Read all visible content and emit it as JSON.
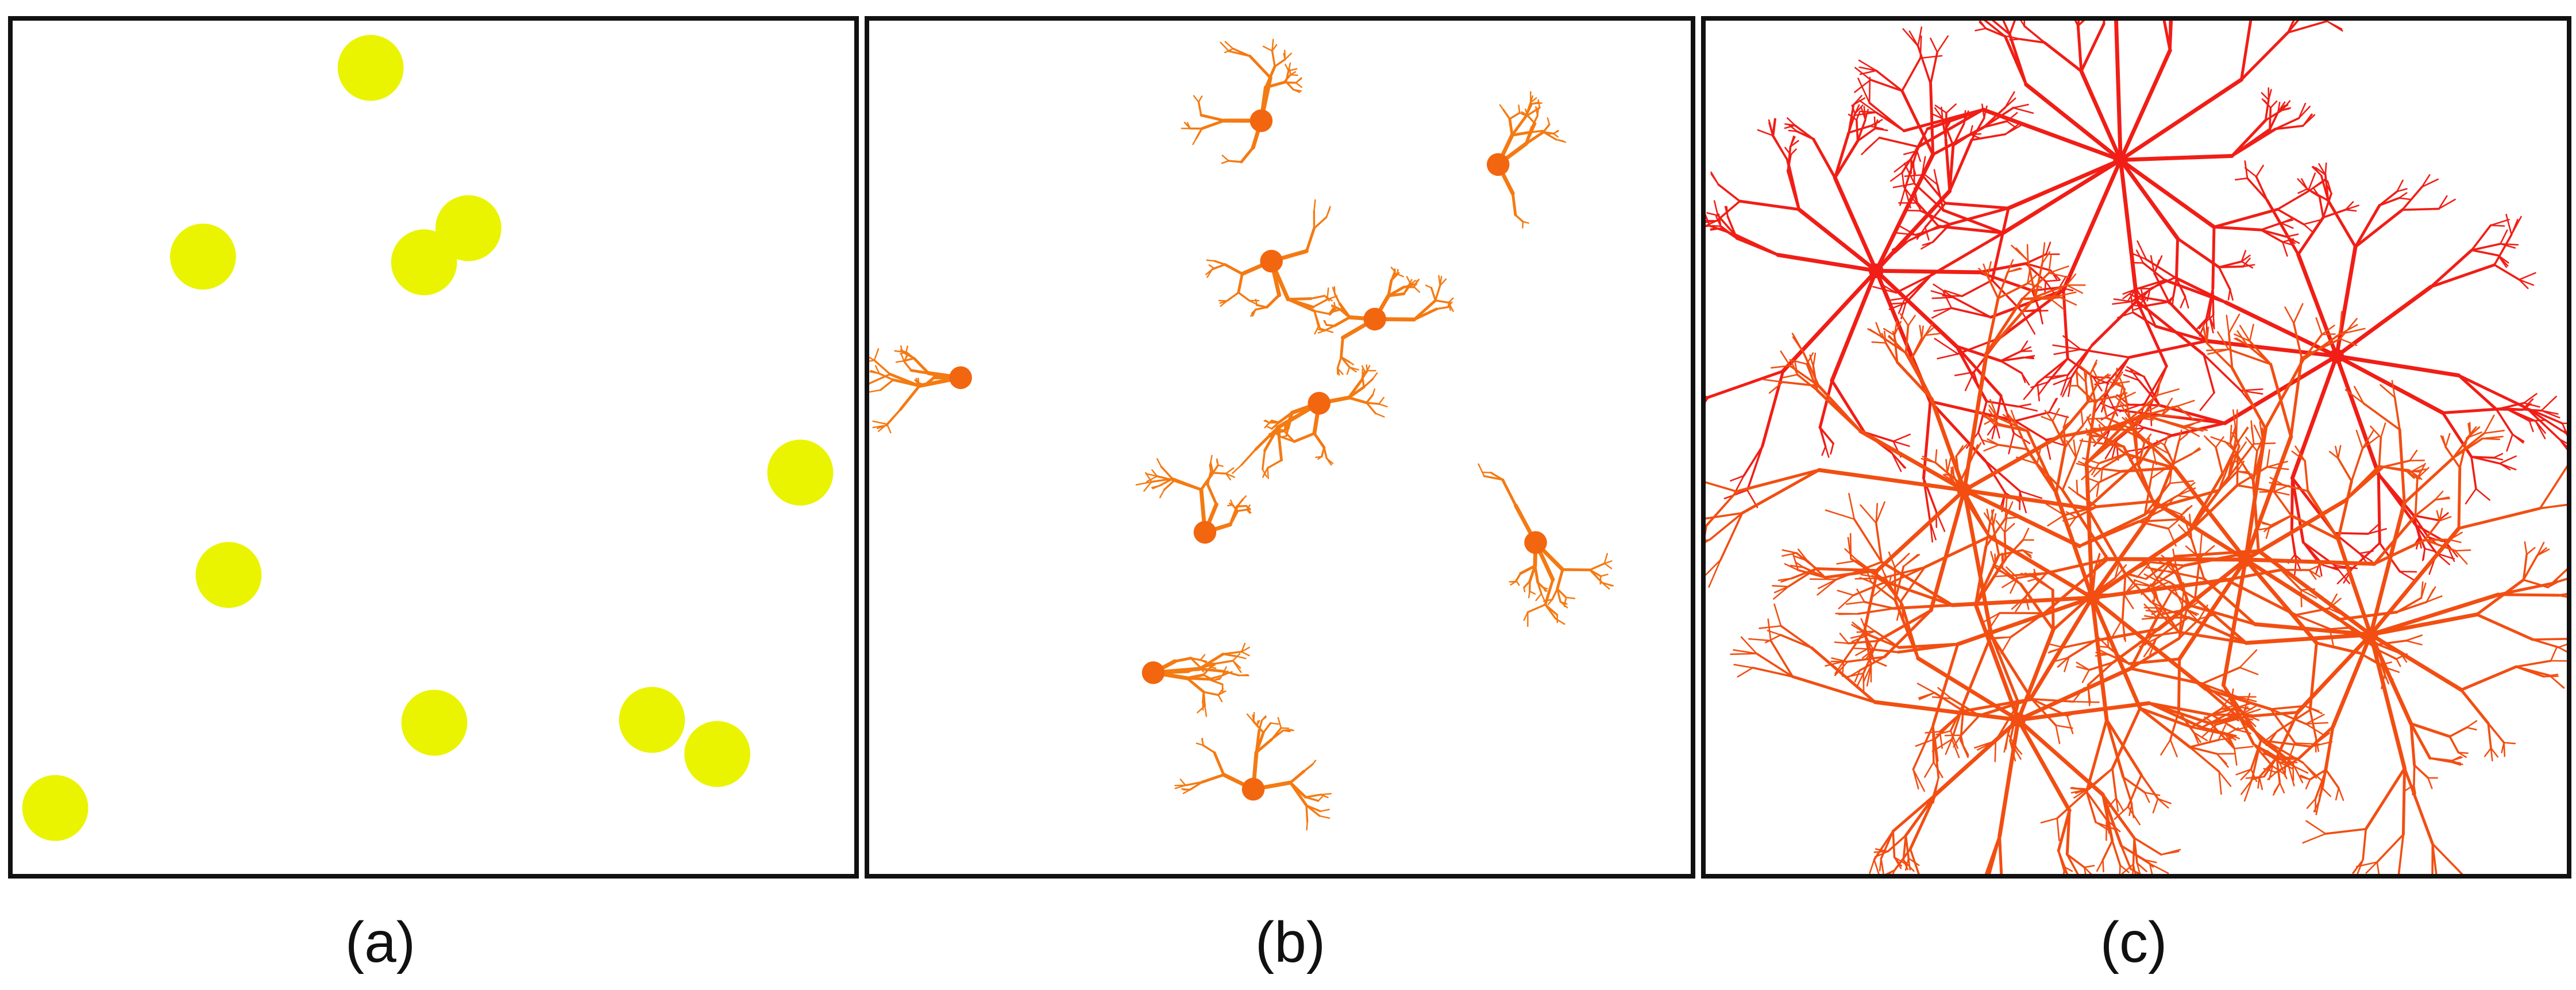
{
  "captions": {
    "a": "(a)",
    "b": "(b)",
    "c": "(c)"
  },
  "colors": {
    "panel_a_dot": "#eaf400",
    "panel_b_stroke": "#f47a12",
    "panel_b_node": "#f2660f",
    "panel_c_upper": "#f01e16",
    "panel_c_lower": "#f24e12"
  },
  "icons": {
    "panel_a": "circle-dots",
    "panel_b": "small-branching-trees",
    "panel_c": "large-branching-network"
  }
}
